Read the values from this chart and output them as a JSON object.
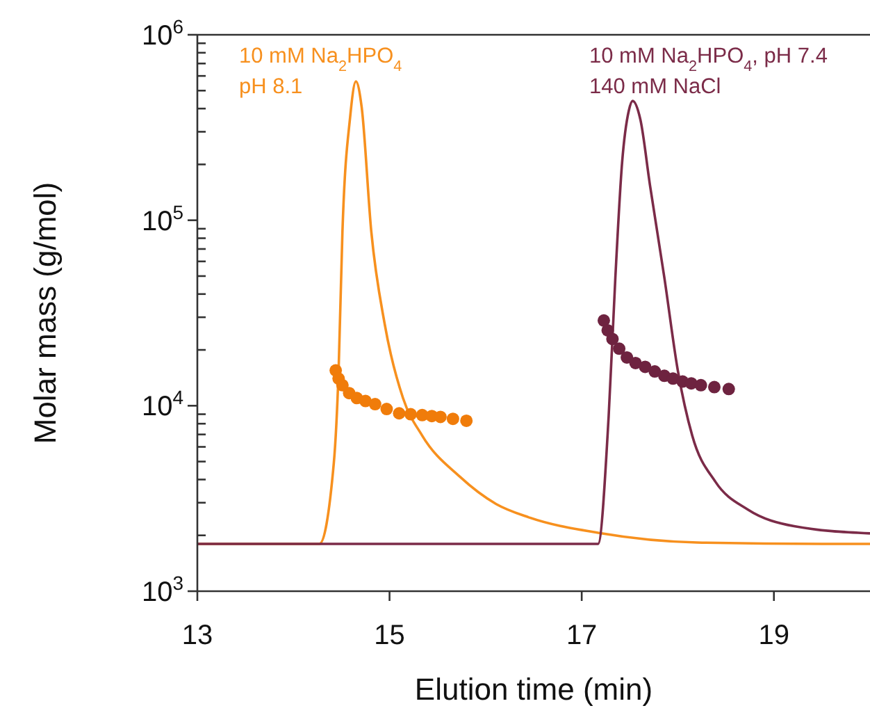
{
  "chart_data": {
    "type": "line",
    "xlabel": "Elution time (min)",
    "ylabel": "Molar mass (g/mol)",
    "log": "y",
    "xlim": [
      13,
      20
    ],
    "xticks": [
      13,
      15,
      17,
      19
    ],
    "ylim": [
      1000,
      1000000
    ],
    "yticks": [
      {
        "value": 1000,
        "label": "10$^{3}$"
      },
      {
        "value": 2000,
        "label": null
      },
      {
        "value": 3000,
        "label": null
      },
      {
        "value": 4000,
        "label": null
      },
      {
        "value": 5000,
        "label": null
      },
      {
        "value": 6000,
        "label": null
      },
      {
        "value": 7000,
        "label": null
      },
      {
        "value": 8000,
        "label": null
      },
      {
        "value": 9000,
        "label": null
      },
      {
        "value": 10000,
        "label": "10$^{4}$"
      },
      {
        "value": 20000,
        "label": null
      },
      {
        "value": 30000,
        "label": null
      },
      {
        "value": 40000,
        "label": null
      },
      {
        "value": 50000,
        "label": null
      },
      {
        "value": 60000,
        "label": null
      },
      {
        "value": 70000,
        "label": null
      },
      {
        "value": 80000,
        "label": null
      },
      {
        "value": 90000,
        "label": null
      },
      {
        "value": 100000,
        "label": "10$^{5}$"
      },
      {
        "value": 200000,
        "label": null
      },
      {
        "value": 300000,
        "label": null
      },
      {
        "value": 400000,
        "label": null
      },
      {
        "value": 500000,
        "label": null
      },
      {
        "value": 600000,
        "label": null
      },
      {
        "value": 700000,
        "label": null
      },
      {
        "value": 800000,
        "label": null
      },
      {
        "value": 900000,
        "label": null
      },
      {
        "value": 1000000,
        "label": "10$^{6}$"
      }
    ],
    "grid": false,
    "line_style": "solid",
    "series": [
      {
        "marker": "none",
        "name": "10 mM Na$_{2}$HPO$_{4}$\npH 8.1",
        "color": "#f7901e",
        "x": [
          13,
          14.27,
          14.42,
          14.47,
          14.51,
          14.59,
          14.65,
          14.71,
          14.81,
          14.95,
          15.14,
          15.34,
          15.73,
          16.11,
          16.45,
          17.18,
          18.2,
          19.5,
          20
        ],
        "values": [
          1800,
          1800,
          4900,
          15500,
          87000,
          360000,
          560000,
          407000,
          87000,
          27500,
          11000,
          6900,
          4150,
          2950,
          2500,
          2060,
          1830,
          1800,
          1800
        ]
      },
      {
        "type": "scatter",
        "marker": "circle",
        "color": "#f07c0a",
        "x": [
          14.44,
          14.47,
          14.51,
          14.58,
          14.66,
          14.75,
          14.85,
          14.97,
          15.1,
          15.22,
          15.34,
          15.44,
          15.53,
          15.66,
          15.8
        ],
        "values": [
          15500,
          14000,
          12900,
          11700,
          11000,
          10600,
          10200,
          9600,
          9100,
          9000,
          8900,
          8800,
          8700,
          8500,
          8300
        ]
      },
      {
        "marker": "none",
        "name": "10 mM Na$_{2}$HPO$_{4}$, pH 7.4\n140 mM NaCl",
        "color": "#7b2b48",
        "x": [
          13,
          17.17,
          17.28,
          17.35,
          17.42,
          17.49,
          17.53,
          17.61,
          17.71,
          17.86,
          18.0,
          18.15,
          18.39,
          18.73,
          19.21,
          20
        ],
        "values": [
          1800,
          1800,
          8700,
          49000,
          204000,
          390000,
          440000,
          350000,
          155000,
          49000,
          15500,
          6900,
          3900,
          2750,
          2240,
          2050
        ]
      },
      {
        "type": "scatter",
        "marker": "circle",
        "color": "#6e2340",
        "x": [
          17.23,
          17.27,
          17.32,
          17.39,
          17.47,
          17.56,
          17.66,
          17.76,
          17.86,
          17.95,
          18.05,
          18.14,
          18.24,
          18.38,
          18.53
        ],
        "values": [
          28800,
          25500,
          22900,
          20300,
          18200,
          17000,
          16200,
          15300,
          14500,
          14000,
          13500,
          13200,
          12900,
          12600,
          12300
        ]
      }
    ]
  }
}
